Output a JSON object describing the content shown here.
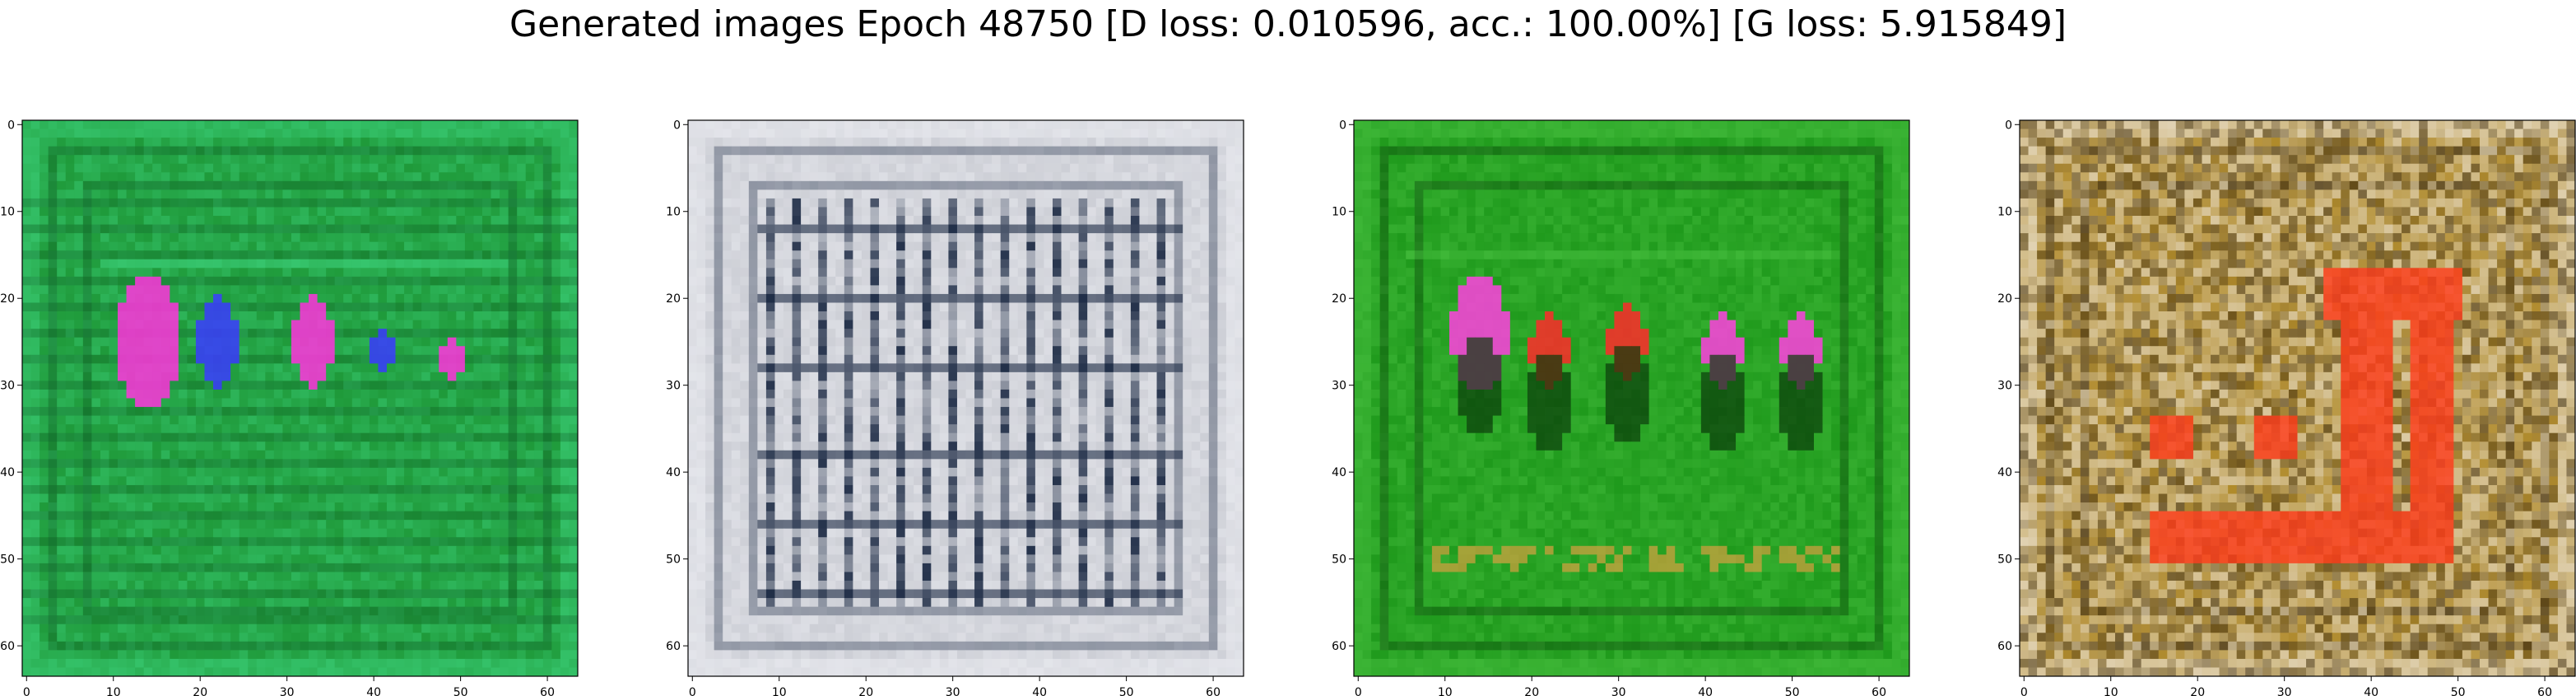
{
  "chart_data": {
    "type": "heatmap",
    "title": "Generated images Epoch 48750 [D loss: 0.010596, acc.: 100.00%] [G loss: 5.915849]",
    "panels": [
      {
        "xlim": [
          0,
          63
        ],
        "ylim": [
          63,
          0
        ],
        "xticks": [
          0,
          10,
          20,
          30,
          40,
          50,
          60
        ],
        "yticks": [
          0,
          10,
          20,
          30,
          40,
          50,
          60
        ],
        "palette": {
          "base": "#1f9a3a",
          "dark": "#0e5a24",
          "light": "#3cd07a",
          "accent1": "#ff33dd",
          "accent2": "#3a3aff"
        }
      },
      {
        "xlim": [
          0,
          63
        ],
        "ylim": [
          63,
          0
        ],
        "xticks": [
          0,
          10,
          20,
          30,
          40,
          50,
          60
        ],
        "yticks": [
          0,
          10,
          20,
          30,
          40,
          50,
          60
        ],
        "palette": {
          "base": "#cdcfd6",
          "dark": "#1c2a44",
          "light": "#ecedf2",
          "accent1": "#9aa6b8",
          "accent2": "#4a5a78"
        }
      },
      {
        "xlim": [
          0,
          63
        ],
        "ylim": [
          63,
          0
        ],
        "xticks": [
          0,
          10,
          20,
          30,
          40,
          50,
          60
        ],
        "yticks": [
          0,
          10,
          20,
          30,
          40,
          50,
          60
        ],
        "palette": {
          "base": "#1f9a1c",
          "dark": "#0a3a0a",
          "light": "#48c040",
          "accent1": "#ff40e0",
          "accent2": "#ff2a2a"
        }
      },
      {
        "xlim": [
          0,
          63
        ],
        "ylim": [
          63,
          0
        ],
        "xticks": [
          0,
          10,
          20,
          30,
          40,
          50,
          60
        ],
        "yticks": [
          0,
          10,
          20,
          30,
          40,
          50,
          60
        ],
        "palette": {
          "base": "#b08a2a",
          "dark": "#3a2a10",
          "light": "#e8ddc8",
          "accent1": "#ff3a1a",
          "accent2": "#6a5a20"
        }
      }
    ]
  }
}
